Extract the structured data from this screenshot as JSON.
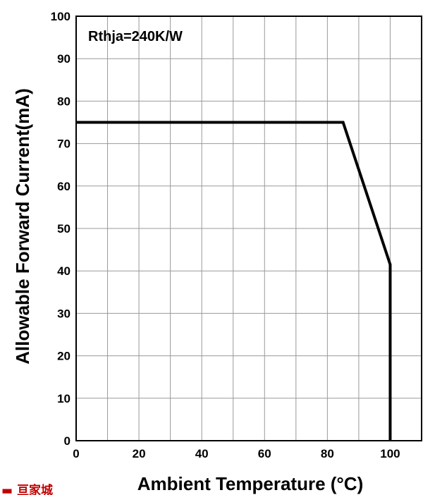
{
  "chart_data": {
    "type": "line",
    "title": "",
    "xlabel": "Ambient Temperature (°C)",
    "ylabel": "Allowable Forward Current(mA)",
    "xlim": [
      0,
      110
    ],
    "ylim": [
      0,
      100
    ],
    "x_ticks": [
      0,
      20,
      40,
      60,
      80,
      100
    ],
    "y_ticks": [
      0,
      10,
      20,
      30,
      40,
      50,
      60,
      70,
      80,
      90,
      100
    ],
    "grid": true,
    "annotation": "Rthja=240K/W",
    "series": [
      {
        "x": [
          0,
          85,
          100,
          100
        ],
        "y": [
          75,
          75,
          41.5,
          0
        ]
      }
    ],
    "colors": {
      "line": "#000000",
      "grid": "#999999",
      "frame": "#000000"
    }
  },
  "watermark": "▬ 亘家城"
}
